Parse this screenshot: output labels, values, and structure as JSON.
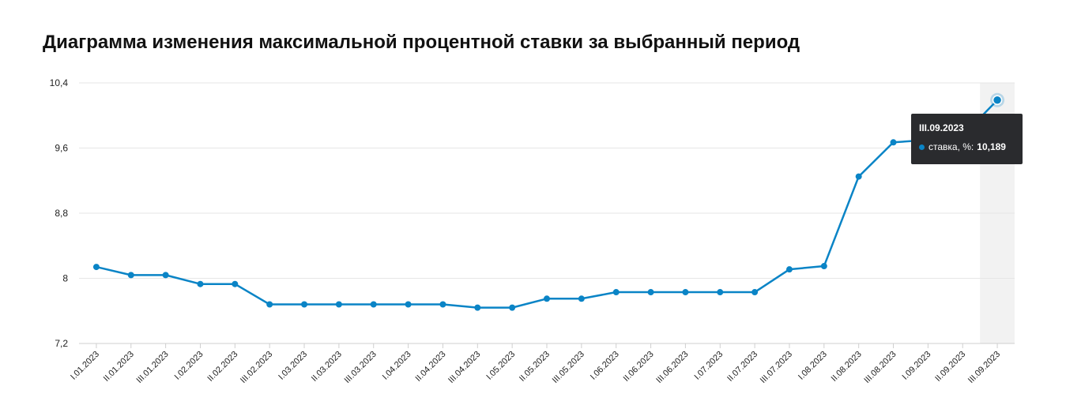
{
  "page": {
    "title": "Диаграмма изменения максимальной процентной ставки за выбранный период"
  },
  "chart_data": {
    "type": "line",
    "title": "Диаграмма изменения максимальной процентной ставки за выбранный период",
    "xlabel": "",
    "ylabel": "",
    "ylim": [
      7.2,
      10.4
    ],
    "yticks": [
      "7,2",
      "8",
      "8,8",
      "9,6",
      "10,4"
    ],
    "grid": true,
    "line_color": "#0a84c6",
    "categories": [
      "I.01.2023",
      "II.01.2023",
      "III.01.2023",
      "I.02.2023",
      "II.02.2023",
      "III.02.2023",
      "I.03.2023",
      "II.03.2023",
      "III.03.2023",
      "I.04.2023",
      "II.04.2023",
      "III.04.2023",
      "I.05.2023",
      "II.05.2023",
      "III.05.2023",
      "I.06.2023",
      "II.06.2023",
      "III.06.2023",
      "I.07.2023",
      "II.07.2023",
      "III.07.2023",
      "I.08.2023",
      "II.08.2023",
      "III.08.2023",
      "I.09.2023",
      "II.09.2023",
      "III.09.2023"
    ],
    "series": [
      {
        "name": "ставка, %",
        "values": [
          8.14,
          8.04,
          8.04,
          7.93,
          7.93,
          7.68,
          7.68,
          7.68,
          7.68,
          7.68,
          7.68,
          7.64,
          7.64,
          7.75,
          7.75,
          7.83,
          7.83,
          7.83,
          7.83,
          7.83,
          8.11,
          8.15,
          9.25,
          9.67,
          9.7,
          9.75,
          10.189
        ]
      }
    ],
    "highlighted_index": 26
  },
  "tooltip": {
    "title": "III.09.2023",
    "series_label": "ставка, %:",
    "value": "10,189"
  }
}
